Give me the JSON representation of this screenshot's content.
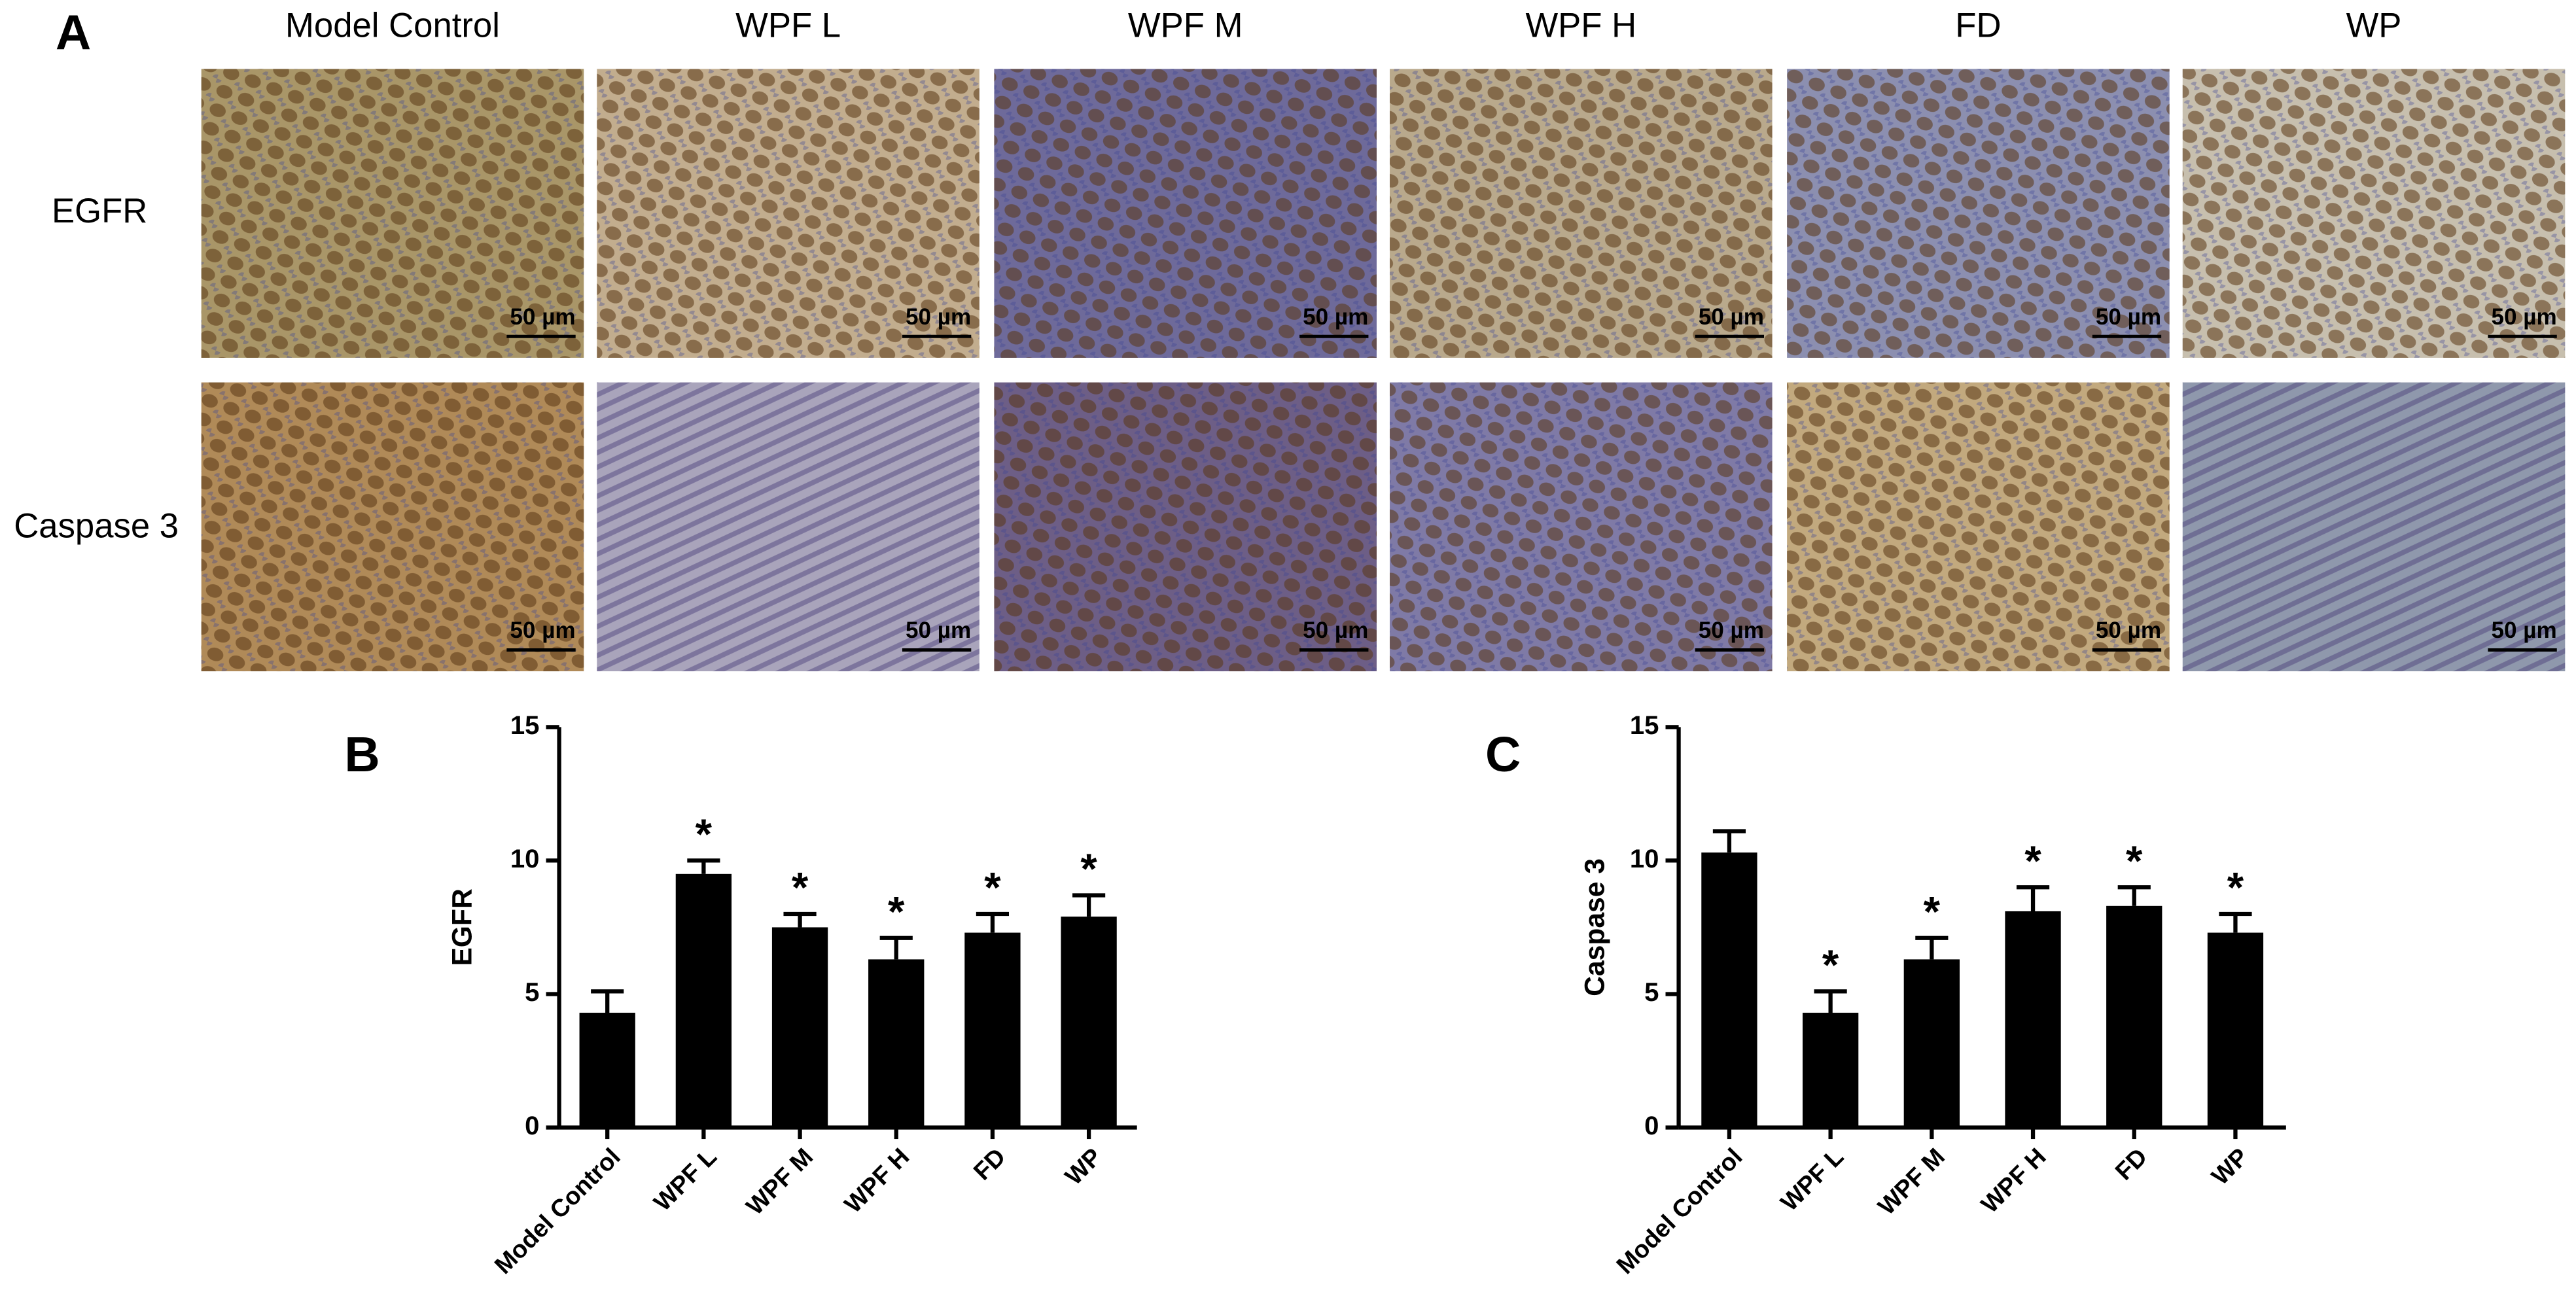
{
  "panel_a": {
    "label": "A",
    "columns": [
      "Model Control",
      "WPF L",
      "WPF M",
      "WPF H",
      "FD",
      "WP"
    ],
    "rows": [
      "EGFR",
      "Caspase 3"
    ],
    "scale_bar": "50 µm"
  },
  "chart_data": [
    {
      "type": "bar",
      "panel_label": "B",
      "ylabel": "EGFR",
      "categories": [
        "Model Control",
        "WPF L",
        "WPF M",
        "WPF H",
        "FD",
        "WP"
      ],
      "values": [
        4.3,
        9.5,
        7.5,
        6.3,
        7.3,
        7.9
      ],
      "errors": [
        0.8,
        0.5,
        0.5,
        0.8,
        0.7,
        0.8
      ],
      "markers": [
        null,
        "*",
        "*",
        "*",
        "*",
        "*"
      ],
      "color": "#000000",
      "ylim": [
        0,
        15
      ],
      "yticks": [
        0,
        5,
        10,
        15
      ]
    },
    {
      "type": "bar",
      "panel_label": "C",
      "ylabel": "Caspase 3",
      "categories": [
        "Model Control",
        "WPF L",
        "WPF M",
        "WPF H",
        "FD",
        "WP"
      ],
      "values": [
        10.3,
        4.3,
        6.3,
        8.1,
        8.3,
        7.3
      ],
      "errors": [
        0.8,
        0.8,
        0.8,
        0.9,
        0.7,
        0.7
      ],
      "markers": [
        null,
        "*",
        "*",
        "*",
        "*",
        "*"
      ],
      "color": "#000000",
      "ylim": [
        0,
        15
      ],
      "yticks": [
        0,
        5,
        10,
        15
      ]
    }
  ]
}
